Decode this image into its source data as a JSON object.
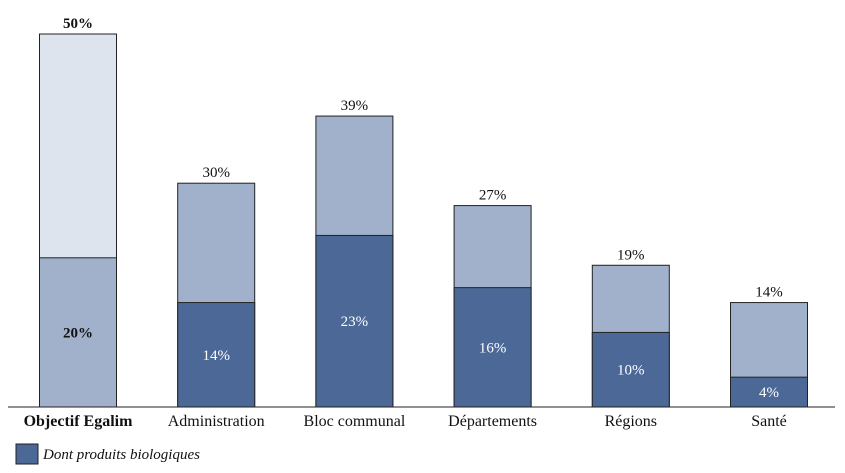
{
  "chart_data": {
    "type": "bar",
    "stacked_overlay": true,
    "categories": [
      "Objectif Egalim",
      "Administration",
      "Bloc communal",
      "Départements",
      "Régions",
      "Santé"
    ],
    "series": [
      {
        "values": [
          50,
          30,
          39,
          27,
          19,
          14
        ],
        "labels": [
          "50%",
          "30%",
          "39%",
          "27%",
          "19%",
          "14%"
        ]
      },
      {
        "name": "Dont produits biologiques",
        "values": [
          20,
          14,
          23,
          16,
          10,
          4
        ],
        "labels": [
          "20%",
          "14%",
          "23%",
          "16%",
          "10%",
          "4%"
        ]
      }
    ],
    "highlight_category": "Objectif Egalim",
    "ylim": [
      0,
      50
    ],
    "grid": false,
    "legend": {
      "position": "bottom-left",
      "label": "Dont produits biologiques"
    },
    "colors": {
      "total_bar": "#a1b1cc",
      "bio_bar": "#4b6897",
      "objective_total_bar": "#dde4ee",
      "objective_bio_bar": "#a1b1cc",
      "outline": "#222222"
    }
  }
}
